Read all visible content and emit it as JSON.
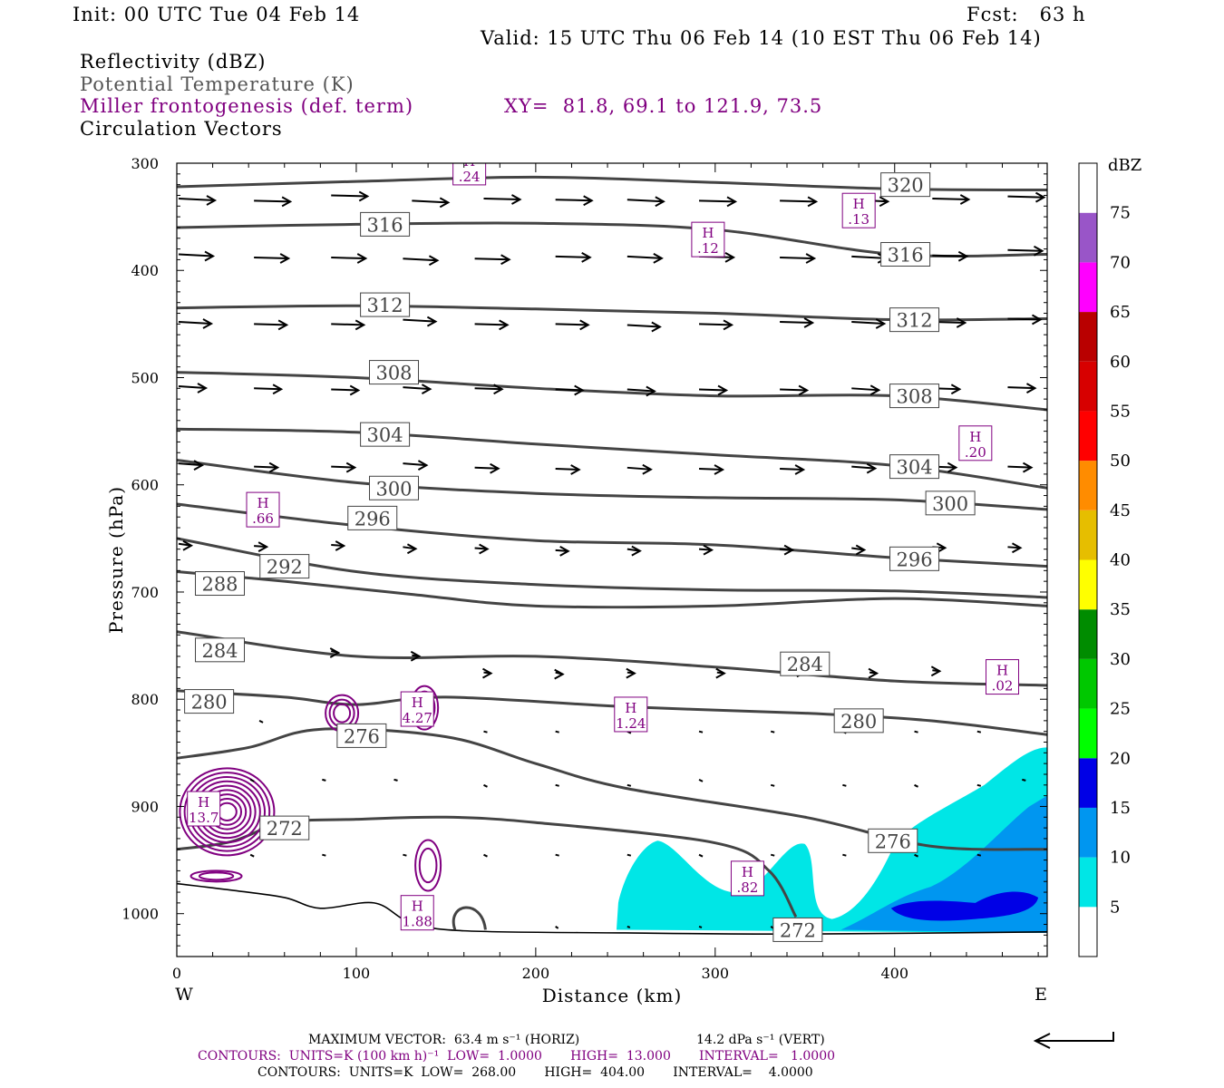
{
  "header": {
    "init": "Init: 00 UTC Tue 04 Feb 14",
    "fcst": "Fcst:   63 h",
    "valid": "Valid: 15 UTC Thu 06 Feb 14 (10 EST Thu 06 Feb 14)",
    "fields": [
      {
        "label": "Reflectivity (dBZ)",
        "color": "#000000"
      },
      {
        "label": "Potential Temperature (K)",
        "color": "#555555"
      },
      {
        "label": "Miller frontogenesis (def. term)",
        "color": "#800080"
      },
      {
        "label": "Circulation Vectors",
        "color": "#000000"
      }
    ],
    "xy": "XY=  81.8, 69.1 to 121.9, 73.5"
  },
  "chart_data": {
    "type": "cross-section",
    "xlabel": "Distance (km)",
    "ylabel": "Pressure (hPa)",
    "xlim": [
      0,
      485
    ],
    "ylim": [
      300,
      1040
    ],
    "xticks": [
      0,
      100,
      200,
      300,
      400
    ],
    "yticks": [
      300,
      400,
      500,
      600,
      700,
      800,
      900,
      1000
    ],
    "x_end_labels": {
      "west": "W",
      "east": "E"
    },
    "colorbar": {
      "title": "dBZ",
      "levels": [
        5,
        10,
        15,
        20,
        25,
        30,
        35,
        40,
        45,
        50,
        55,
        60,
        65,
        70,
        75
      ],
      "colors": [
        "#00e6e6",
        "#0096f0",
        "#0000e6",
        "#00ff00",
        "#00c800",
        "#008c00",
        "#ffff00",
        "#e6be00",
        "#ff8c00",
        "#ff0000",
        "#d70000",
        "#b90000",
        "#ff00ff",
        "#9955c8",
        "#ffffff"
      ]
    },
    "theta_contours": [
      {
        "label": "320",
        "points": [
          [
            0,
            322
          ],
          [
            100,
            317
          ],
          [
            200,
            313
          ],
          [
            300,
            318
          ],
          [
            400,
            324
          ],
          [
            485,
            325
          ]
        ],
        "labels_at": [
          [
            406,
            320
          ]
        ]
      },
      {
        "label": "316",
        "points": [
          [
            0,
            360
          ],
          [
            100,
            357
          ],
          [
            200,
            356
          ],
          [
            300,
            362
          ],
          [
            400,
            385
          ],
          [
            485,
            385
          ]
        ],
        "labels_at": [
          [
            116,
            357
          ],
          [
            406,
            385
          ]
        ]
      },
      {
        "label": "312",
        "points": [
          [
            0,
            435
          ],
          [
            100,
            433
          ],
          [
            200,
            436
          ],
          [
            300,
            440
          ],
          [
            400,
            446
          ],
          [
            485,
            445
          ]
        ],
        "labels_at": [
          [
            116,
            432
          ],
          [
            411,
            446
          ]
        ]
      },
      {
        "label": "308",
        "points": [
          [
            0,
            495
          ],
          [
            100,
            500
          ],
          [
            200,
            510
          ],
          [
            300,
            517
          ],
          [
            400,
            517
          ],
          [
            485,
            530
          ]
        ],
        "labels_at": [
          [
            121,
            495
          ],
          [
            411,
            517
          ]
        ]
      },
      {
        "label": "304",
        "points": [
          [
            0,
            548
          ],
          [
            100,
            551
          ],
          [
            200,
            562
          ],
          [
            300,
            572
          ],
          [
            400,
            582
          ],
          [
            485,
            603
          ]
        ],
        "labels_at": [
          [
            116,
            553
          ],
          [
            411,
            583
          ]
        ]
      },
      {
        "label": "300",
        "points": [
          [
            0,
            577
          ],
          [
            100,
            598
          ],
          [
            200,
            608
          ],
          [
            300,
            612
          ],
          [
            400,
            614
          ],
          [
            485,
            623
          ]
        ],
        "labels_at": [
          [
            121,
            603
          ],
          [
            431,
            617
          ]
        ]
      },
      {
        "label": "296",
        "points": [
          [
            0,
            618
          ],
          [
            100,
            638
          ],
          [
            200,
            652
          ],
          [
            300,
            656
          ],
          [
            400,
            668
          ],
          [
            485,
            676
          ]
        ],
        "labels_at": [
          [
            109,
            631
          ],
          [
            411,
            669
          ]
        ]
      },
      {
        "label": "292",
        "points": [
          [
            0,
            650
          ],
          [
            100,
            681
          ],
          [
            200,
            693
          ],
          [
            300,
            698
          ],
          [
            400,
            699
          ],
          [
            485,
            705
          ]
        ],
        "labels_at": [
          [
            60,
            676
          ]
        ]
      },
      {
        "label": "288",
        "points": [
          [
            0,
            681
          ],
          [
            60,
            690
          ],
          [
            130,
            702
          ],
          [
            200,
            713
          ],
          [
            300,
            713
          ],
          [
            400,
            706
          ],
          [
            485,
            713
          ]
        ],
        "labels_at": [
          [
            24,
            692
          ]
        ]
      },
      {
        "label": "284",
        "points": [
          [
            0,
            737
          ],
          [
            100,
            760
          ],
          [
            200,
            760
          ],
          [
            300,
            770
          ],
          [
            400,
            783
          ],
          [
            485,
            787
          ]
        ],
        "labels_at": [
          [
            24,
            754
          ],
          [
            350,
            767
          ]
        ]
      },
      {
        "label": "280",
        "points": [
          [
            0,
            792
          ],
          [
            60,
            798
          ],
          [
            100,
            805
          ],
          [
            150,
            798
          ],
          [
            250,
            807
          ],
          [
            350,
            813
          ],
          [
            420,
            820
          ],
          [
            485,
            833
          ]
        ],
        "labels_at": [
          [
            18,
            802
          ],
          [
            380,
            820
          ]
        ]
      },
      {
        "label": "276",
        "points": [
          [
            0,
            855
          ],
          [
            40,
            845
          ],
          [
            80,
            828
          ],
          [
            150,
            835
          ],
          [
            200,
            860
          ],
          [
            250,
            883
          ],
          [
            350,
            910
          ],
          [
            420,
            937
          ],
          [
            485,
            940
          ]
        ],
        "labels_at": [
          [
            103,
            834
          ],
          [
            399,
            932
          ]
        ]
      },
      {
        "label": "272",
        "points": [
          [
            0,
            940
          ],
          [
            30,
            933
          ],
          [
            60,
            915
          ],
          [
            100,
            912
          ],
          [
            150,
            910
          ],
          [
            200,
            915
          ],
          [
            300,
            934
          ],
          [
            330,
            960
          ],
          [
            345,
            1003
          ]
        ],
        "labels_at": [
          [
            60,
            920
          ],
          [
            346,
            1015
          ]
        ]
      }
    ],
    "frontogenesis_maxima": [
      {
        "label": "H",
        "value": ".24",
        "at": [
          163,
          305
        ]
      },
      {
        "label": "H",
        "value": ".12",
        "at": [
          296,
          372
        ]
      },
      {
        "label": "H",
        "value": ".13",
        "at": [
          380,
          345
        ]
      },
      {
        "label": "H",
        "value": ".20",
        "at": [
          445,
          562
        ]
      },
      {
        "label": "H",
        "value": ".66",
        "at": [
          48,
          624
        ]
      },
      {
        "label": "H",
        "value": ".02",
        "at": [
          460,
          780
        ]
      },
      {
        "label": "H",
        "value": "4.27",
        "at": [
          134,
          810
        ]
      },
      {
        "label": "H",
        "value": "1.24",
        "at": [
          253,
          815
        ]
      },
      {
        "label": "H",
        "value": "13.7",
        "at": [
          15,
          903
        ]
      },
      {
        "label": "H",
        "value": ".82",
        "at": [
          318,
          968
        ]
      },
      {
        "label": "H",
        "value": "1.88",
        "at": [
          134,
          1000
        ]
      }
    ],
    "max_vector": {
      "text": "MAXIMUM VECTOR:  63.4 m s⁻¹ (HORIZ)",
      "vert": "14.2 dPa s⁻¹ (VERT)"
    },
    "contour_info": [
      {
        "text": "CONTOURS:  UNITS=K (100 km h)⁻¹  LOW=  1.0000       HIGH=  13.000       INTERVAL=   1.0000",
        "color": "#800080"
      },
      {
        "text": "CONTOURS:  UNITS=K  LOW=  268.00       HIGH=  404.00       INTERVAL=    4.0000",
        "color": "#000000"
      }
    ]
  }
}
